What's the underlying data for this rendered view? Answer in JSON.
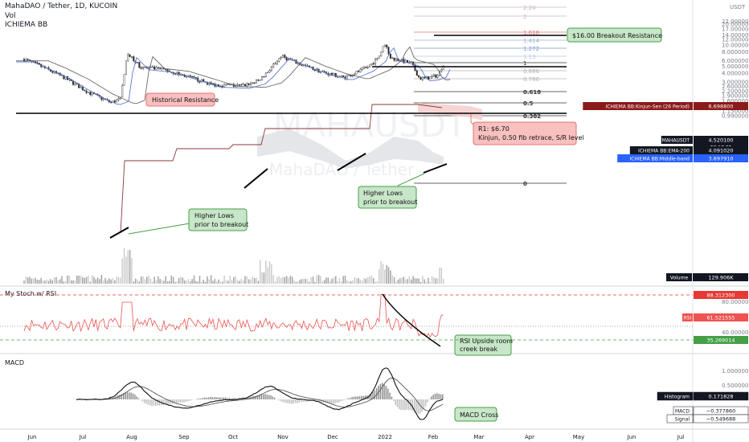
{
  "header": {
    "title": "MahaDAO / Tether, 1D, KUCOIN",
    "line2": "Vol",
    "line3": "ICHIEMA BB"
  },
  "watermark": {
    "symbol": "MAHAUSDT",
    "name": "MahaDAO / Tether"
  },
  "price_axis": {
    "currency": "USDT",
    "ticks": [
      "22.000000",
      "20.000000",
      "17.000000",
      "14.000000",
      "12.000000",
      "10.000000",
      "8.000000",
      "6.000000",
      "5.000000",
      "4.000000",
      "3.000000",
      "2.600000",
      "2.200000",
      "1.900000",
      "1.600000",
      "1.350000",
      "1.150000",
      "0.990000"
    ]
  },
  "time_axis": {
    "labels": [
      "Jun",
      "Jul",
      "Aug",
      "Sep",
      "Oct",
      "Nov",
      "Dec",
      "2022",
      "Feb",
      "Mar",
      "Apr",
      "May",
      "Jun",
      "Jul"
    ]
  },
  "fib_levels": [
    {
      "label": "2.24",
      "color": "#c7b8b8"
    },
    {
      "label": "2",
      "color": "#c7b8b8"
    },
    {
      "label": "1.618",
      "color": "#e57373"
    },
    {
      "label": "1.414",
      "color": "#9fb3d9"
    },
    {
      "label": "1.272",
      "color": "#7f9ad0"
    },
    {
      "label": "1.13",
      "color": "#b9c7e0"
    },
    {
      "label": "1",
      "color": "#333333"
    },
    {
      "label": "0.886",
      "color": "#b0b0b0"
    },
    {
      "label": "0.786",
      "color": "#b0b0b0"
    },
    {
      "label": "0.618",
      "color": "#333333"
    },
    {
      "label": "0.5",
      "color": "#333333"
    },
    {
      "label": "0.382",
      "color": "#333333"
    },
    {
      "label": "0",
      "color": "#333333"
    }
  ],
  "annotations": {
    "breakout_resistance": "$16.00 Breakout Resistance",
    "historical_resistance": "Historical Resistance",
    "r1_line1": "R1: $6.70",
    "r1_line2": "Kinjun, 0.50 fib retrace, S/R level",
    "higher_lows_left_1": "Higher Lows",
    "higher_lows_left_2": "prior to breakout",
    "higher_lows_right_1": "Higher Lows",
    "higher_lows_right_2": "prior to breakout",
    "rsi_note_1": "RSI Upside room",
    "rsi_note_2": "creek break",
    "macd_note": "MACD Cross"
  },
  "price_badges": [
    {
      "label": "ICHIEMA BB:Kinjun-Sen (26 Period)",
      "value": "6.698800",
      "color": "#8b1a1a"
    },
    {
      "label": "MAHAUSDT",
      "value": "4.520100",
      "sub": "07:17:32",
      "color": "#131722"
    },
    {
      "label": "ICHIEMA BB:EMA-200",
      "value": "4.091020",
      "color": "#131722"
    },
    {
      "label": "ICHIEMA BB:Middle-band",
      "value": "3.697910",
      "color": "#2962ff"
    }
  ],
  "volume": {
    "label": "Volume",
    "value": "129.906K"
  },
  "rsi_panel": {
    "title": "My Stoch w/ RSI",
    "ticks": [
      "80.000000",
      "40.000000"
    ],
    "badges": [
      {
        "label": "",
        "value": "88.312300",
        "color": "#e53935"
      },
      {
        "label": "RSI",
        "value": "61.521555",
        "color": "#ef5350"
      },
      {
        "label": "",
        "value": "35.269014",
        "color": "#43a047"
      }
    ]
  },
  "macd_panel": {
    "title": "MACD",
    "ticks": [
      "1.000000",
      "0.500000",
      "-0.500000"
    ],
    "badges": [
      {
        "label": "Histogram",
        "value": "0.171828"
      },
      {
        "label": "MACD",
        "value": "−0.377860"
      },
      {
        "label": "Signal",
        "value": "−0.549688"
      }
    ]
  },
  "chart_data": {
    "type": "candlestick",
    "title": "MahaDAO / Tether, 1D, KUCOIN",
    "y_scale": "log",
    "ylim": [
      0.99,
      22.0
    ],
    "x_range": [
      "Jun 2021",
      "Jul 2022"
    ],
    "levels": {
      "breakout_resistance": 16.0,
      "historical_resistance": 6.3,
      "r1": 6.7
    },
    "key_points": [
      {
        "date": "Jun 2021",
        "price": 6.2
      },
      {
        "date": "Jul 2021",
        "price": 1.5
      },
      {
        "date": "Aug 2021",
        "price": 6.5
      },
      {
        "date": "Sep 2021",
        "price": 3.6
      },
      {
        "date": "Oct 2021",
        "price": 2.6
      },
      {
        "date": "Nov 2021",
        "price": 6.8
      },
      {
        "date": "Dec 2021",
        "price": 3.4
      },
      {
        "date": "Jan 2022",
        "price": 10.5
      },
      {
        "date": "Jan 2022",
        "price": 3.4
      },
      {
        "date": "Feb 2022",
        "price": 4.52
      }
    ],
    "legend": "none",
    "grid": false
  }
}
